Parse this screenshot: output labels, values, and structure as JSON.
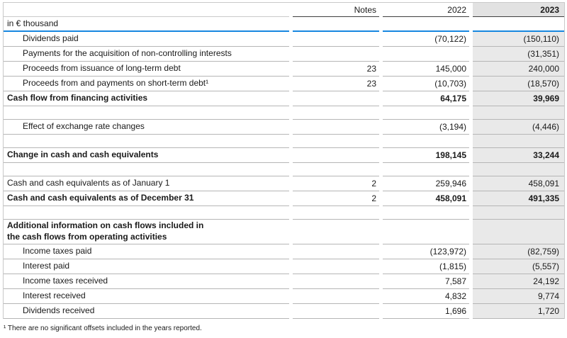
{
  "table": {
    "columns": {
      "notes": "Notes",
      "y2022": "2022",
      "y2023": "2023"
    },
    "rows": [
      {
        "type": "unit",
        "label": "in € thousand",
        "notes": "",
        "y2022": "",
        "y2023": ""
      },
      {
        "type": "detail",
        "label": "Dividends paid",
        "notes": "",
        "y2022": "(70,122)",
        "y2023": "(150,110)"
      },
      {
        "type": "detail",
        "label": "Payments for the acquisition of non-controlling interests",
        "notes": "",
        "y2022": "",
        "y2023": "(31,351)"
      },
      {
        "type": "detail",
        "label": "Proceeds from issuance of long-term debt",
        "notes": "23",
        "y2022": "145,000",
        "y2023": "240,000"
      },
      {
        "type": "detail",
        "label": "Proceeds from and payments on short-term debt¹",
        "notes": "23",
        "y2022": "(10,703)",
        "y2023": "(18,570)"
      },
      {
        "type": "total",
        "label": "Cash flow from financing activities",
        "notes": "",
        "y2022": "64,175",
        "y2023": "39,969"
      },
      {
        "type": "blank",
        "label": "",
        "notes": "",
        "y2022": "",
        "y2023": ""
      },
      {
        "type": "detail",
        "label": "Effect of exchange rate changes",
        "notes": "",
        "y2022": "(3,194)",
        "y2023": "(4,446)"
      },
      {
        "type": "blank",
        "label": "",
        "notes": "",
        "y2022": "",
        "y2023": ""
      },
      {
        "type": "total",
        "label": "Change in cash and cash equivalents",
        "notes": "",
        "y2022": "198,145",
        "y2023": "33,244"
      },
      {
        "type": "blank",
        "label": "",
        "notes": "",
        "y2022": "",
        "y2023": ""
      },
      {
        "type": "plain",
        "label": "Cash and cash equivalents as of January 1",
        "notes": "2",
        "y2022": "259,946",
        "y2023": "458,091"
      },
      {
        "type": "total",
        "label": "Cash and cash equivalents as of December 31",
        "notes": "2",
        "y2022": "458,091",
        "y2023": "491,335"
      },
      {
        "type": "blank",
        "label": "",
        "notes": "",
        "y2022": "",
        "y2023": ""
      },
      {
        "type": "section",
        "label": "Additional information on cash flows included in\nthe cash flows from operating activities",
        "notes": "",
        "y2022": "",
        "y2023": ""
      },
      {
        "type": "detail",
        "label": "Income taxes paid",
        "notes": "",
        "y2022": "(123,972)",
        "y2023": "(82,759)"
      },
      {
        "type": "detail",
        "label": "Interest paid",
        "notes": "",
        "y2022": "(1,815)",
        "y2023": "(5,557)"
      },
      {
        "type": "detail",
        "label": "Income taxes received",
        "notes": "",
        "y2022": "7,587",
        "y2023": "24,192"
      },
      {
        "type": "detail",
        "label": "Interest received",
        "notes": "",
        "y2022": "4,832",
        "y2023": "9,774"
      },
      {
        "type": "detail",
        "label": "Dividends received",
        "notes": "",
        "y2022": "1,696",
        "y2023": "1,720"
      }
    ]
  },
  "footnote": "¹ There are no significant offsets included in the years reported.",
  "colors": {
    "accent_blue": "#1787e0",
    "column_highlight": "#e9e9e9",
    "column_header_highlight": "#e2e2e2",
    "header_underline": "#3f3f3f",
    "row_divider": "#b6b6b6",
    "outer_border": "#c9c9c9"
  }
}
